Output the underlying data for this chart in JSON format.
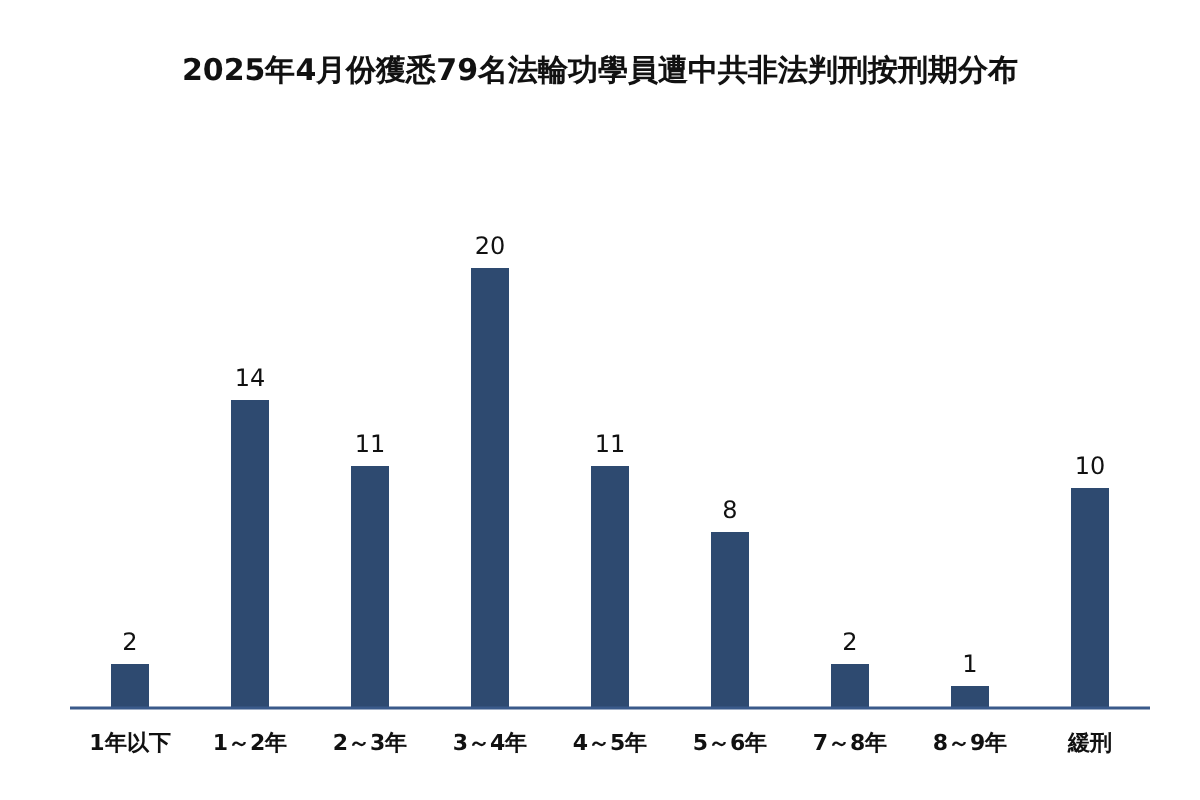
{
  "chart_data": {
    "type": "bar",
    "title": "2025年4月份獲悉79名法輪功學員遭中共非法判刑按刑期分布",
    "categories": [
      "1年以下",
      "1～2年",
      "2～3年",
      "3～4年",
      "4～5年",
      "5～6年",
      "7～8年",
      "8～9年",
      "緩刑"
    ],
    "values": [
      2,
      14,
      11,
      20,
      11,
      8,
      2,
      1,
      10
    ],
    "color": "#2e4a70",
    "data_labels": true
  }
}
